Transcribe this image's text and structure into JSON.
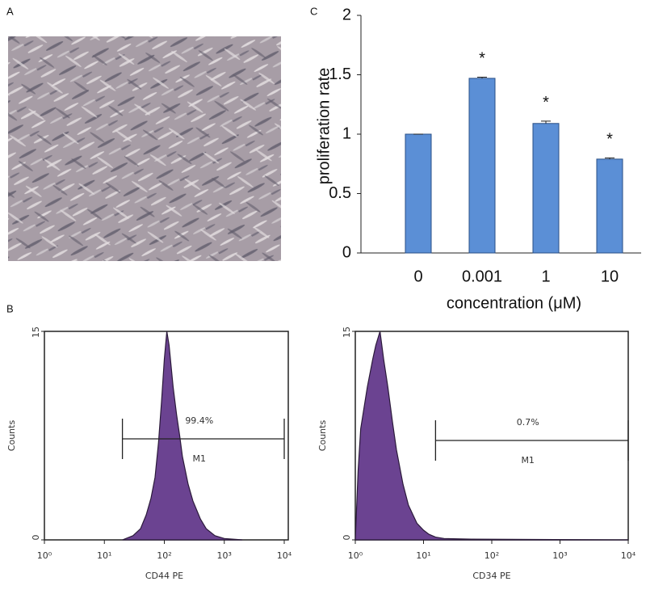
{
  "panel_labels": {
    "a": "A",
    "b": "B",
    "c": "C"
  },
  "chart_data": [
    {
      "type": "bar",
      "ylabel": "proliferation rate",
      "xlabel": "concentration (μM)",
      "categories": [
        "0",
        "0.001",
        "1",
        "10"
      ],
      "values": [
        1.0,
        1.47,
        1.09,
        0.79
      ],
      "errors": [
        0,
        0.01,
        0.02,
        0.01
      ],
      "annotations": [
        null,
        "*",
        "*",
        "*"
      ],
      "color": "#5b8fd6",
      "ylim": [
        0,
        2
      ],
      "yticks": [
        0,
        0.5,
        1,
        1.5,
        2
      ]
    },
    {
      "type": "area",
      "ylabel": "Counts",
      "xlabel": "CD44 PE",
      "xscale": "log",
      "color": "#6b4391",
      "x": [
        20,
        30,
        40,
        50,
        60,
        70,
        80,
        90,
        100,
        110,
        120,
        140,
        160,
        180,
        200,
        250,
        300,
        400,
        500,
        700,
        1000,
        2000
      ],
      "values": [
        0,
        0.3,
        0.8,
        1.8,
        3,
        4.5,
        7,
        10,
        13,
        15,
        14,
        11,
        9,
        7.5,
        6,
        4,
        2.8,
        1.5,
        0.8,
        0.3,
        0.1,
        0
      ],
      "xlim": [
        1,
        10000
      ],
      "xticks": [
        {
          "value": 1,
          "label": "10⁰"
        },
        {
          "value": 10,
          "label": "10¹"
        },
        {
          "value": 100,
          "label": "10²"
        },
        {
          "value": 1000,
          "label": "10³"
        },
        {
          "value": 10000,
          "label": "10⁴"
        }
      ],
      "ylim": [
        0,
        15
      ],
      "yticks": [
        0,
        15
      ],
      "gate": {
        "name": "M1",
        "range": [
          20,
          10000
        ],
        "value": 99.4,
        "value_label": "99.4%"
      }
    },
    {
      "type": "area",
      "ylabel": "Counts",
      "xlabel": "CD34 PE",
      "xscale": "log",
      "color": "#6b4391",
      "x": [
        1,
        1.1,
        1.2,
        1.5,
        1.8,
        2,
        2.3,
        2.6,
        3,
        3.5,
        4,
        5,
        6,
        7,
        8,
        10,
        12,
        15,
        20,
        50,
        10000
      ],
      "values": [
        0,
        5,
        8,
        11,
        13,
        14,
        15,
        13,
        11,
        8.5,
        6.5,
        4,
        2.5,
        1.8,
        1.2,
        0.7,
        0.4,
        0.2,
        0.1,
        0.05,
        0
      ],
      "xlim": [
        1,
        10000
      ],
      "xticks": [
        {
          "value": 1,
          "label": "10⁰"
        },
        {
          "value": 10,
          "label": "10¹"
        },
        {
          "value": 100,
          "label": "10²"
        },
        {
          "value": 1000,
          "label": "10³"
        },
        {
          "value": 10000,
          "label": "10⁴"
        }
      ],
      "ylim": [
        0,
        15
      ],
      "yticks": [
        0,
        15
      ],
      "gate": {
        "name": "M1",
        "range": [
          15,
          10000
        ],
        "value": 0.7,
        "value_label": "0.7%"
      }
    }
  ]
}
